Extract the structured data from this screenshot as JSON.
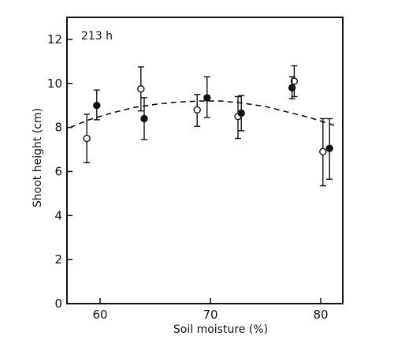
{
  "chart_data": {
    "type": "scatter",
    "panel_label": "213 h",
    "xlabel": "Soil moisture (%)",
    "ylabel": "Shoot height (cm)",
    "xlim": [
      57,
      82
    ],
    "ylim": [
      0,
      13
    ],
    "x_ticks": [
      60,
      70,
      80
    ],
    "y_ticks": [
      0,
      2,
      4,
      6,
      8,
      10,
      12
    ],
    "grid": false,
    "legend": "none",
    "series": [
      {
        "marker": "open-circle",
        "points": [
          {
            "x": 58.8,
            "y": 7.5,
            "err_low": 6.4,
            "err_high": 8.6
          },
          {
            "x": 63.7,
            "y": 9.75,
            "err_low": 8.75,
            "err_high": 10.75
          },
          {
            "x": 68.8,
            "y": 8.8,
            "err_low": 8.05,
            "err_high": 9.5
          },
          {
            "x": 72.5,
            "y": 8.5,
            "err_low": 7.5,
            "err_high": 9.4
          },
          {
            "x": 77.6,
            "y": 10.1,
            "err_low": 9.4,
            "err_high": 10.8
          },
          {
            "x": 80.2,
            "y": 6.9,
            "err_low": 5.35,
            "err_high": 8.4
          }
        ]
      },
      {
        "marker": "filled-circle",
        "points": [
          {
            "x": 59.7,
            "y": 9.0,
            "err_low": 8.35,
            "err_high": 9.7
          },
          {
            "x": 64.0,
            "y": 8.4,
            "err_low": 7.45,
            "err_high": 9.35
          },
          {
            "x": 69.7,
            "y": 9.35,
            "err_low": 8.45,
            "err_high": 10.3
          },
          {
            "x": 72.8,
            "y": 8.65,
            "err_low": 7.85,
            "err_high": 9.45
          },
          {
            "x": 77.4,
            "y": 9.8,
            "err_low": 9.3,
            "err_high": 10.3
          },
          {
            "x": 80.8,
            "y": 7.05,
            "err_low": 5.65,
            "err_high": 8.4
          }
        ]
      }
    ],
    "fit_curve": {
      "style": "dashed",
      "x": [
        57.3,
        59,
        61,
        63,
        65,
        67,
        69,
        71,
        73,
        75,
        77,
        79,
        81.5
      ],
      "y": [
        8.0,
        8.35,
        8.65,
        8.9,
        9.05,
        9.15,
        9.2,
        9.2,
        9.1,
        8.95,
        8.7,
        8.45,
        8.05
      ]
    }
  }
}
